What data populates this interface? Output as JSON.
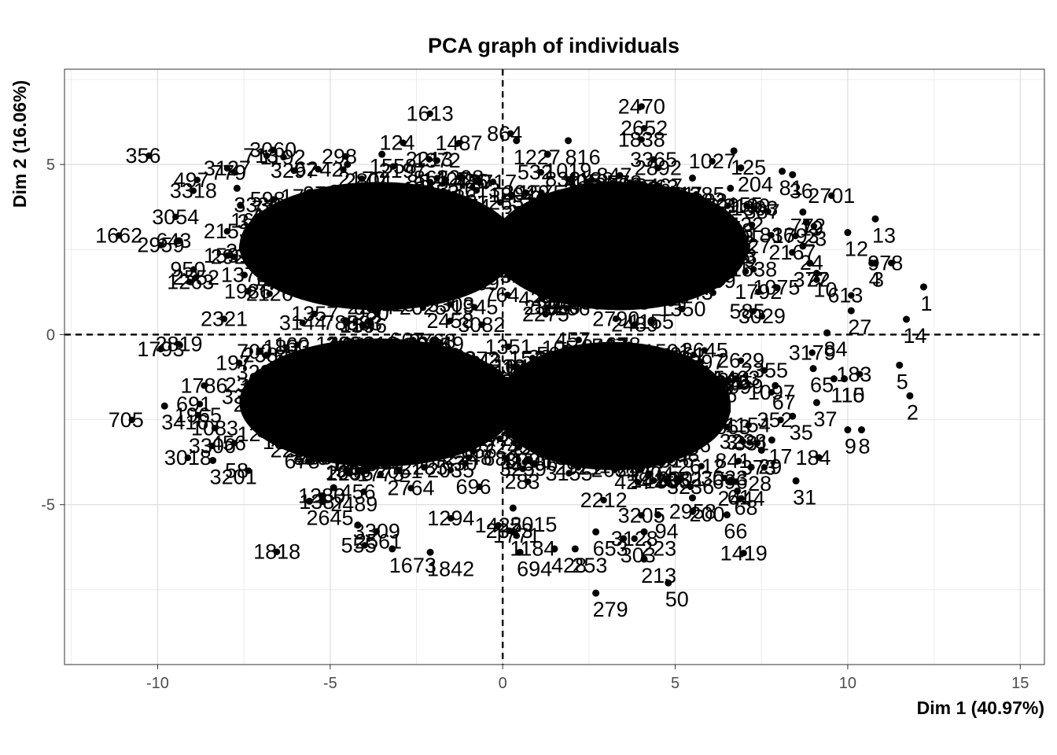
{
  "chart_data": {
    "type": "scatter",
    "title": "PCA graph of individuals",
    "xlabel": "Dim 1 (40.97%)",
    "ylabel": "Dim 2 (16.06%)",
    "xlim": [
      -12.7,
      15.7
    ],
    "ylim": [
      -9.7,
      7.8
    ],
    "xticks": [
      -10,
      -5,
      0,
      5,
      10,
      15
    ],
    "yticks": [
      -5,
      0,
      5
    ],
    "grid": true,
    "reference_lines": {
      "x": 0,
      "y": 0,
      "style": "dashed"
    },
    "labeled_points": [
      {
        "label": "1",
        "x": 12.2,
        "y": 1.4
      },
      {
        "label": "14",
        "x": 11.7,
        "y": 0.45
      },
      {
        "label": "5",
        "x": 11.5,
        "y": -0.9
      },
      {
        "label": "2",
        "x": 11.8,
        "y": -1.8
      },
      {
        "label": "13",
        "x": 10.8,
        "y": 3.4
      },
      {
        "label": "12",
        "x": 10.0,
        "y": 3.0
      },
      {
        "label": "4",
        "x": 10.7,
        "y": 2.1
      },
      {
        "label": "3",
        "x": 10.8,
        "y": 2.1
      },
      {
        "label": "27",
        "x": 10.1,
        "y": 0.7
      },
      {
        "label": "84",
        "x": 9.4,
        "y": 0.05
      },
      {
        "label": "10",
        "x": 9.1,
        "y": 1.8
      },
      {
        "label": "22",
        "x": 8.9,
        "y": 2.1
      },
      {
        "label": "24",
        "x": 8.7,
        "y": 2.6
      },
      {
        "label": "23",
        "x": 8.8,
        "y": 3.3
      },
      {
        "label": "19",
        "x": 8.7,
        "y": 3.6
      },
      {
        "label": "36",
        "x": 8.4,
        "y": 4.7
      },
      {
        "label": "81",
        "x": 8.1,
        "y": 4.8
      },
      {
        "label": "125",
        "x": 6.7,
        "y": 5.4
      },
      {
        "label": "204",
        "x": 6.9,
        "y": 4.9
      },
      {
        "label": "155",
        "x": 6.6,
        "y": 4.3
      },
      {
        "label": "385",
        "x": 5.5,
        "y": 4.6
      },
      {
        "label": "65",
        "x": 9.0,
        "y": -1.0
      },
      {
        "label": "110",
        "x": 9.6,
        "y": -1.3
      },
      {
        "label": "15",
        "x": 9.9,
        "y": -1.3
      },
      {
        "label": "37",
        "x": 9.1,
        "y": -2.0
      },
      {
        "label": "35",
        "x": 8.4,
        "y": -2.4
      },
      {
        "label": "9",
        "x": 10.0,
        "y": -2.8
      },
      {
        "label": "8",
        "x": 10.4,
        "y": -2.8
      },
      {
        "label": "67",
        "x": 7.9,
        "y": -1.5
      },
      {
        "label": "17",
        "x": 7.8,
        "y": -3.1
      },
      {
        "label": "31",
        "x": 8.5,
        "y": -4.3
      },
      {
        "label": "29",
        "x": 7.5,
        "y": -3.4
      },
      {
        "label": "28",
        "x": 7.2,
        "y": -3.9
      },
      {
        "label": "68",
        "x": 6.8,
        "y": -4.6
      },
      {
        "label": "61",
        "x": 6.6,
        "y": -4.3
      },
      {
        "label": "66",
        "x": 6.5,
        "y": -5.3
      },
      {
        "label": "200",
        "x": 5.5,
        "y": -4.8
      },
      {
        "label": "94",
        "x": 4.5,
        "y": -5.3
      },
      {
        "label": "223",
        "x": 4.1,
        "y": -5.8
      },
      {
        "label": "213",
        "x": 4.1,
        "y": -6.6
      },
      {
        "label": "50",
        "x": 4.8,
        "y": -7.3
      },
      {
        "label": "279",
        "x": 2.7,
        "y": -7.6
      },
      {
        "label": "303",
        "x": 3.5,
        "y": -6.0
      },
      {
        "label": "653",
        "x": 2.7,
        "y": -5.8
      },
      {
        "label": "253",
        "x": 2.1,
        "y": -6.3
      },
      {
        "label": "428",
        "x": 1.5,
        "y": -6.3
      },
      {
        "label": "694",
        "x": 0.5,
        "y": -6.4
      },
      {
        "label": "1184",
        "x": 0.3,
        "y": -5.8
      },
      {
        "label": "2015",
        "x": 0.3,
        "y": -5.1
      },
      {
        "label": "1227",
        "x": 0.4,
        "y": 5.7
      },
      {
        "label": "816",
        "x": 1.9,
        "y": 5.7
      },
      {
        "label": "1019",
        "x": 1.3,
        "y": 5.3
      },
      {
        "label": "2645",
        "x": -5.6,
        "y": -4.9
      },
      {
        "label": "2489",
        "x": -4.9,
        "y": -4.5
      },
      {
        "label": "2561",
        "x": -4.2,
        "y": -5.6
      },
      {
        "label": "1673",
        "x": -3.2,
        "y": -6.3
      },
      {
        "label": "1842",
        "x": -2.1,
        "y": -6.4
      },
      {
        "label": "3416",
        "x": -9.8,
        "y": -2.1
      },
      {
        "label": "3201",
        "x": -8.4,
        "y": -3.7
      },
      {
        "label": "3401",
        "x": -7.6,
        "y": 3.8
      },
      {
        "label": "3333",
        "x": -7.7,
        "y": 4.3
      },
      {
        "label": "2197",
        "x": -3.5,
        "y": 5.3
      },
      {
        "label": "2804",
        "x": -4.5,
        "y": 5.0
      }
    ]
  }
}
